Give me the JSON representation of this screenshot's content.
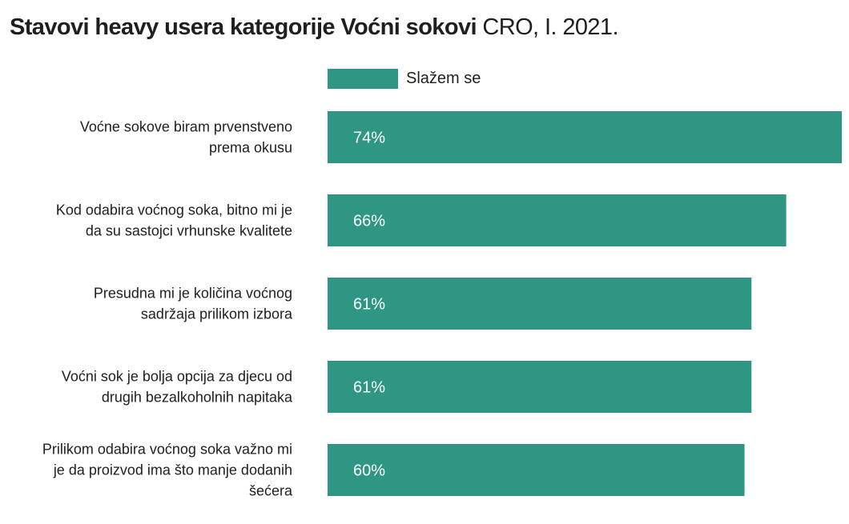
{
  "title": {
    "bold_part": "Stavovi heavy usera kategorije Voćni sokovi",
    "light_part": "CRO, I. 2021."
  },
  "colors": {
    "bar": "#2E9683",
    "text": "#1f1f1f",
    "bar_text": "#ffffff"
  },
  "chart_data": {
    "type": "bar",
    "orientation": "horizontal",
    "title": "Stavovi heavy usera kategorije Voćni sokovi CRO, I. 2021.",
    "legend": {
      "entries": [
        "Slažem se"
      ],
      "placement": "top"
    },
    "categories": [
      [
        "Voćne sokove biram prvenstveno",
        "prema okusu"
      ],
      [
        "Kod odabira voćnog soka, bitno mi je",
        "da su sastojci vrhunske kvalitete"
      ],
      [
        "Presudna mi je količina voćnog",
        "sadržaja prilikom izbora"
      ],
      [
        "Voćni sok je bolja opcija za djecu od",
        "drugih bezalkoholnih napitaka"
      ],
      [
        "Prilikom odabira voćnog soka važno mi",
        "je da proizvod  ima što manje dodanih",
        "šećera"
      ]
    ],
    "series": [
      {
        "name": "Slažem se",
        "values": [
          74,
          66,
          61,
          61,
          60
        ],
        "labels": [
          "74%",
          "66%",
          "61%",
          "61%",
          "60%"
        ]
      }
    ],
    "xlim": [
      0,
      74
    ],
    "grid": false
  }
}
